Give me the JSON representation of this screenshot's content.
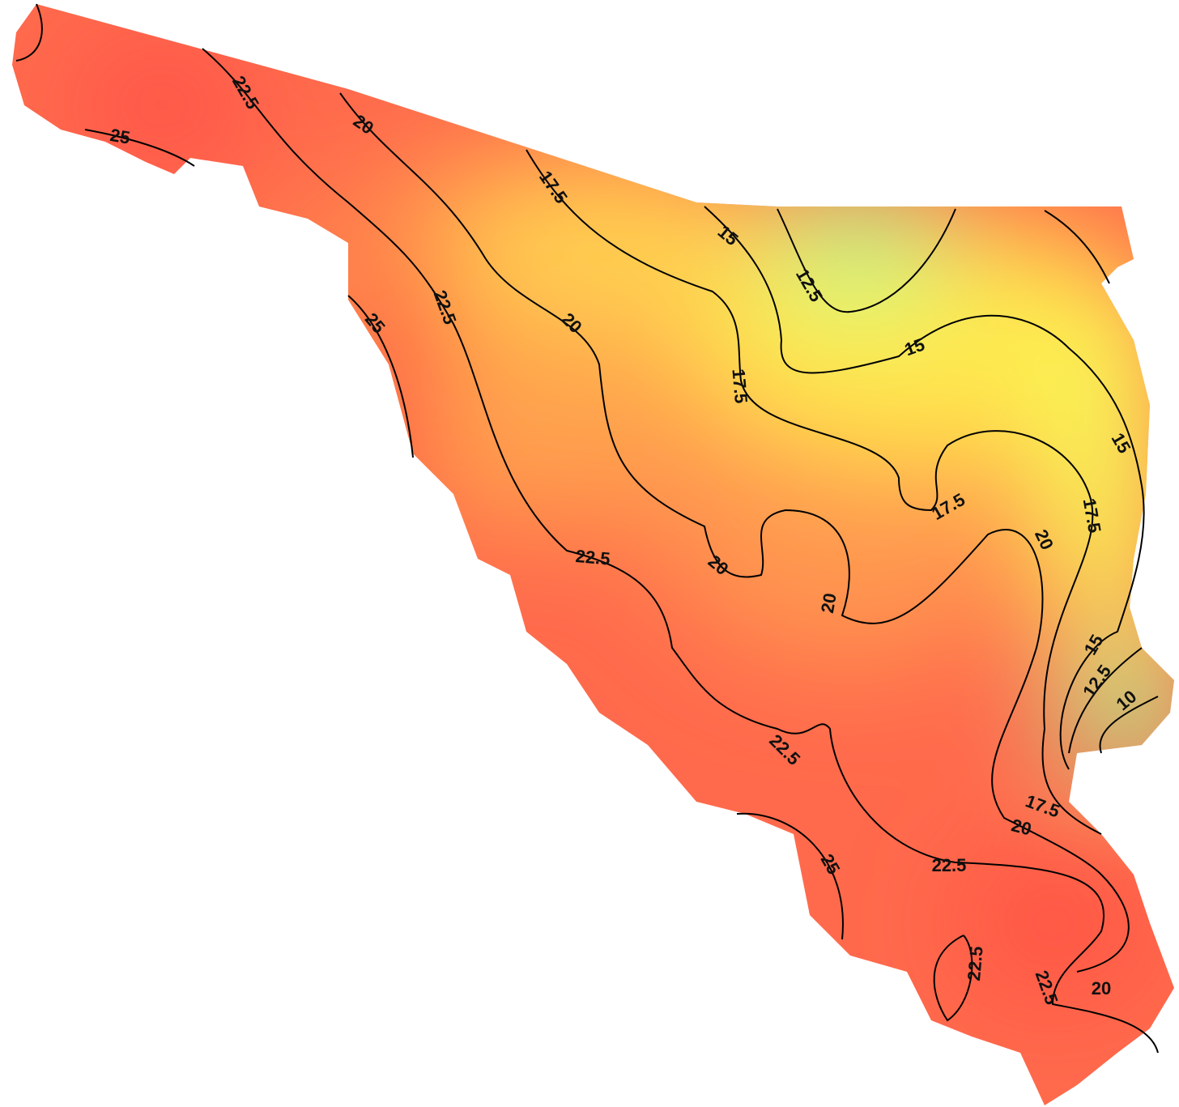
{
  "map": {
    "contour_labels": [
      25,
      22.5,
      20,
      17.5,
      15,
      12.5,
      25,
      22.5,
      20,
      17.5,
      15,
      15,
      17.5,
      17.5,
      20,
      20,
      22.5,
      20,
      15,
      12.5,
      10,
      22.5,
      17.5,
      20,
      25,
      22.5,
      22.5,
      22.5,
      20
    ]
  }
}
